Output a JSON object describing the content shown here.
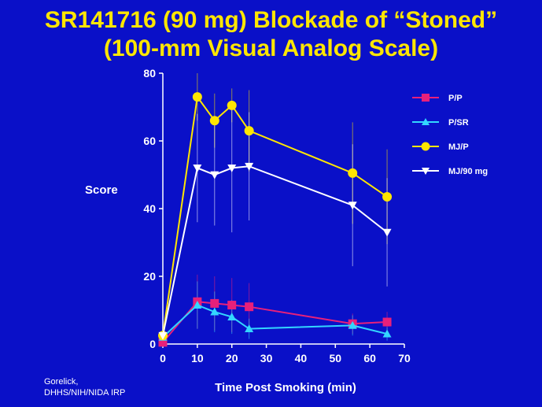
{
  "title_line1": "SR141716 (90 mg) Blockade of “Stoned”",
  "title_line2": "(100-mm Visual Analog Scale)",
  "credit_line1": "Gorelick,",
  "credit_line2": "DHHS/NIH/NIDA IRP",
  "colors": {
    "background": "#0A10C8",
    "title": "#FFE600",
    "axis": "#FFFFFF"
  },
  "chart_data": {
    "type": "line",
    "xlabel": "Time Post Smoking (min)",
    "ylabel": "Score",
    "xlim": [
      0,
      70
    ],
    "ylim": [
      0,
      80
    ],
    "xticks": [
      0,
      10,
      20,
      30,
      40,
      50,
      60,
      70
    ],
    "yticks": [
      0,
      20,
      40,
      60,
      80
    ],
    "legend_position": "top-right",
    "grid": false,
    "error_bars": true,
    "series": [
      {
        "name": "P/P",
        "color": "#E8207A",
        "marker": "square",
        "x": [
          0,
          10,
          15,
          20,
          25,
          55,
          65
        ],
        "values": [
          0.5,
          12.5,
          12,
          11.5,
          11,
          6,
          6.5
        ],
        "err": [
          0,
          8,
          8,
          8,
          7,
          3,
          3
        ]
      },
      {
        "name": "P/SR",
        "color": "#33D6FF",
        "marker": "triangle-up",
        "x": [
          0,
          10,
          15,
          20,
          25,
          55,
          65
        ],
        "values": [
          2,
          11.5,
          9.5,
          8,
          4.5,
          5.5,
          3
        ],
        "err": [
          0,
          7,
          6,
          5,
          3,
          3,
          2
        ]
      },
      {
        "name": "MJ/P",
        "color": "#FFE600",
        "marker": "circle",
        "x": [
          0,
          10,
          15,
          20,
          25,
          55,
          65
        ],
        "values": [
          2.5,
          73,
          66,
          70.5,
          63,
          50.5,
          43.5
        ],
        "err": [
          0,
          7,
          8,
          5,
          12,
          15,
          14
        ]
      },
      {
        "name": "MJ/90 mg",
        "color": "#FFFFFF",
        "marker": "triangle-down",
        "x": [
          0,
          10,
          15,
          20,
          25,
          55,
          65
        ],
        "values": [
          2.5,
          52,
          50,
          52,
          52.5,
          41,
          33
        ],
        "err": [
          0,
          16,
          15,
          19,
          16,
          18,
          16
        ]
      }
    ]
  }
}
